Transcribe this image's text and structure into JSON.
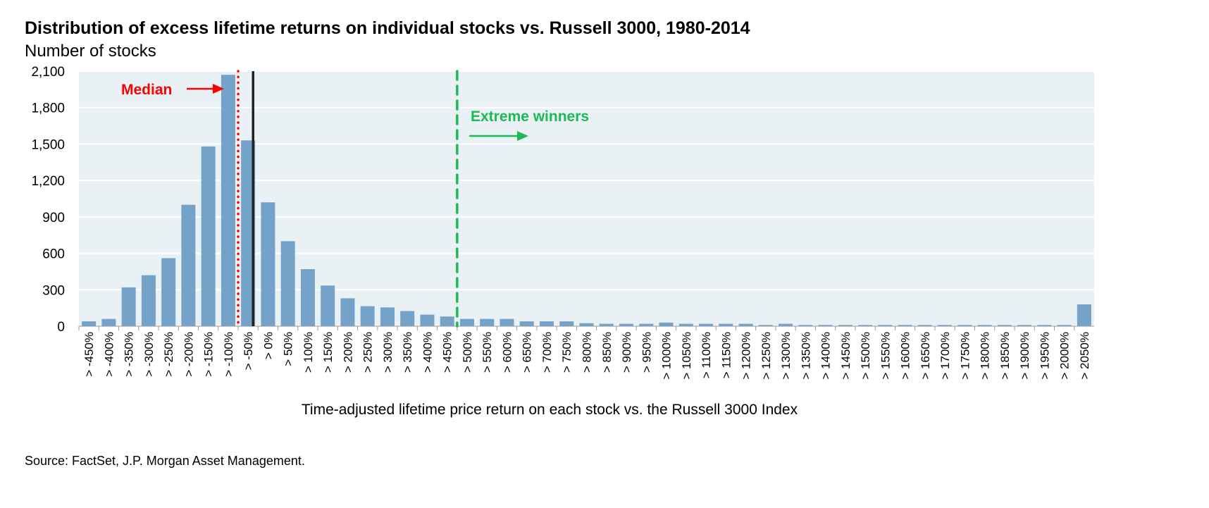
{
  "chart_data": {
    "type": "bar",
    "title": "Distribution of excess lifetime returns on individual stocks vs. Russell 3000, 1980-2014",
    "subtitle": "Number of stocks",
    "xlabel": "Time-adjusted lifetime price return on each stock vs. the Russell 3000 Index",
    "ylabel": "Number of stocks",
    "ylim": [
      0,
      2100
    ],
    "yticks": [
      "0",
      "300",
      "600",
      "900",
      "1,200",
      "1,500",
      "1,800",
      "2,100"
    ],
    "ytick_values": [
      0,
      300,
      600,
      900,
      1200,
      1500,
      1800,
      2100
    ],
    "grid": true,
    "categories": [
      "> -450%",
      "> -400%",
      "> -350%",
      "> -300%",
      "> -250%",
      "> -200%",
      "> -150%",
      "> -100%",
      "> -50%",
      "> 0%",
      "> 50%",
      "> 100%",
      "> 150%",
      "> 200%",
      "> 250%",
      "> 300%",
      "> 350%",
      "> 400%",
      "> 450%",
      "> 500%",
      "> 550%",
      "> 600%",
      "> 650%",
      "> 700%",
      "> 750%",
      "> 800%",
      "> 850%",
      "> 900%",
      "> 950%",
      "> 1000%",
      "> 1050%",
      "> 1100%",
      "> 1150%",
      "> 1200%",
      "> 1250%",
      "> 1300%",
      "> 1350%",
      "> 1400%",
      "> 1450%",
      "> 1500%",
      "> 1550%",
      "> 1600%",
      "> 1650%",
      "> 1700%",
      "> 1750%",
      "> 1800%",
      "> 1850%",
      "> 1900%",
      "> 1950%",
      "> 2000%",
      "> 2050%"
    ],
    "values": [
      40,
      60,
      320,
      420,
      560,
      1000,
      1480,
      2070,
      1530,
      1020,
      700,
      470,
      335,
      230,
      165,
      155,
      125,
      95,
      80,
      60,
      60,
      60,
      40,
      40,
      40,
      25,
      20,
      20,
      20,
      30,
      20,
      20,
      20,
      20,
      10,
      20,
      10,
      10,
      10,
      10,
      10,
      10,
      10,
      10,
      10,
      10,
      10,
      10,
      10,
      10,
      180
    ],
    "annotations": {
      "median_label": "Median",
      "median_position_index": 8,
      "zero_line_index": 8.75,
      "extreme_label": "Extreme winners",
      "extreme_position_index": 19
    },
    "colors": {
      "bar": "#74a2c9",
      "plot_bg": "#e9f1f5",
      "median": "#ff0000",
      "extreme": "#1db954",
      "zero_line": "#222222"
    }
  },
  "source": "Source: FactSet, J.P. Morgan Asset Management."
}
